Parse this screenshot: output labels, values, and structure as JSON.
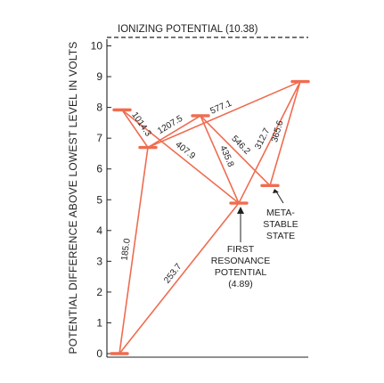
{
  "diagram": {
    "ionizing_label": "IONIZING POTENTIAL (10.38)",
    "ionizing_value": 10.38,
    "y_axis_label": "POTENTIAL DIFFERENCE ABOVE LOWEST LEVEL IN VOLTS",
    "y_ticks": [
      "0",
      "1",
      "2",
      "3",
      "4",
      "5",
      "6",
      "7",
      "8",
      "9",
      "10"
    ],
    "colors": {
      "level": "#ef6c50",
      "transition": "#ef6c50",
      "axis": "#222222",
      "dashed": "#222222"
    },
    "levels": [
      {
        "id": "ground",
        "energy": 0.0
      },
      {
        "id": "L4_89",
        "energy": 4.89
      },
      {
        "id": "L5_46",
        "energy": 5.46
      },
      {
        "id": "L6_70",
        "energy": 6.7
      },
      {
        "id": "L7_73",
        "energy": 7.73
      },
      {
        "id": "L7_92",
        "energy": 7.92
      },
      {
        "id": "L8_84",
        "energy": 8.84
      }
    ],
    "transitions": [
      {
        "from": "L7_92",
        "to": "L6_70",
        "wavelength": "1014.3"
      },
      {
        "from": "L6_70",
        "to": "L7_73",
        "wavelength": "1207.5"
      },
      {
        "from": "L6_70",
        "to": "L8_84",
        "wavelength": "577.1"
      },
      {
        "from": "L7_92",
        "to": "L4_89",
        "wavelength": "407.9"
      },
      {
        "from": "L7_73",
        "to": "L4_89",
        "wavelength": "435.8"
      },
      {
        "from": "L7_73",
        "to": "L5_46",
        "wavelength": "546.2"
      },
      {
        "from": "L8_84",
        "to": "L4_89",
        "wavelength": "312.7"
      },
      {
        "from": "L8_84",
        "to": "L5_46",
        "wavelength": "365.6"
      },
      {
        "from": "ground",
        "to": "L6_70",
        "wavelength": "185.0"
      },
      {
        "from": "ground",
        "to": "L4_89",
        "wavelength": "253.7"
      }
    ],
    "annotations": {
      "metastable": [
        "META-",
        "STABLE",
        "STATE"
      ],
      "first_resonance": [
        "FIRST",
        "RESONANCE",
        "POTENTIAL",
        "(4.89)"
      ]
    }
  }
}
